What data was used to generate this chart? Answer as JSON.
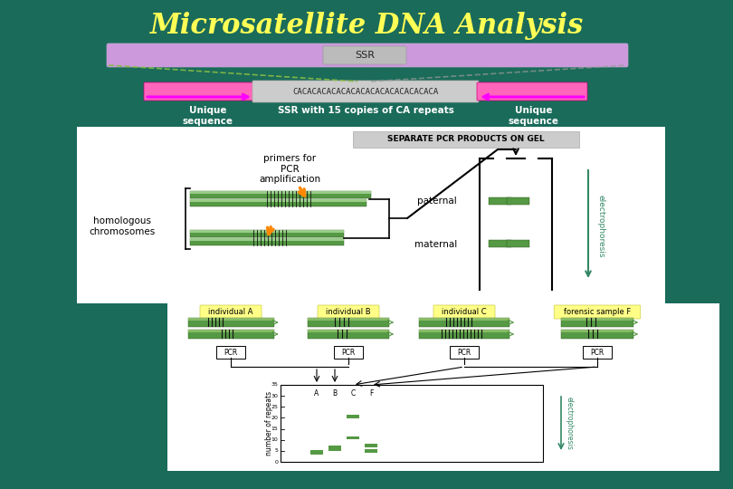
{
  "title": "Microsatellite DNA Analysis",
  "title_color": "#FFFF55",
  "title_fontsize": 22,
  "bg_color": "#1a6b5a",
  "fig_width": 8.1,
  "fig_height": 5.4,
  "dpi": 100,
  "ssr_label": "SSR",
  "unique_sequence_label": "Unique\nsequence",
  "ssr_repeat_text": "CACACACACACACACACACACACACACACA",
  "ssr_repeat_subtitle": "SSR with 15 copies of CA repeats",
  "purple_bar_color": "#CC99DD",
  "pink_bar_color": "#FF66BB",
  "arrow_color": "#FF00FF",
  "green_line_color": "#88BB44",
  "grey_line_color": "#999999",
  "green_chr_color": "#559944",
  "green_chr_light": "#77BB66",
  "white": "#FFFFFF",
  "yellow_label": "#FFFF88",
  "teal_text": "#338866"
}
